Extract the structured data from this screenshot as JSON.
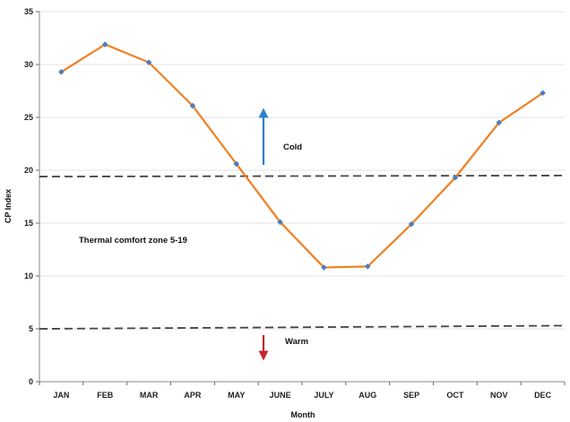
{
  "chart_data": {
    "type": "line",
    "title": "",
    "xlabel": "Month",
    "ylabel": "CP Index",
    "ylim": [
      0,
      35
    ],
    "yticks": [
      0,
      5,
      10,
      15,
      20,
      25,
      30,
      35
    ],
    "grid": "horizontal",
    "categories": [
      "JAN",
      "FEB",
      "MAR",
      "APR",
      "MAY",
      "JUNE",
      "JULY",
      "AUG",
      "SEP",
      "OCT",
      "NOV",
      "DEC"
    ],
    "series": [
      {
        "values": [
          29.3,
          31.9,
          30.2,
          26.1,
          20.6,
          15.1,
          10.8,
          10.9,
          14.9,
          19.3,
          24.5,
          27.3
        ],
        "line_color": "#f07f22",
        "marker_color": "#4a7ebf"
      }
    ],
    "reference_lines": [
      {
        "y_start": 19.4,
        "y_end": 19.5,
        "style": "dashed",
        "color": "#444444"
      },
      {
        "y_start": 5.0,
        "y_end": 5.3,
        "style": "dashed",
        "color": "#444444"
      }
    ],
    "annotations": {
      "cold_label": "Cold",
      "warm_label": "Warm",
      "comfort_label": "Thermal comfort zone  5-19",
      "cold_arrow_color": "#2a7fd0",
      "warm_arrow_color": "#c0282e"
    }
  }
}
